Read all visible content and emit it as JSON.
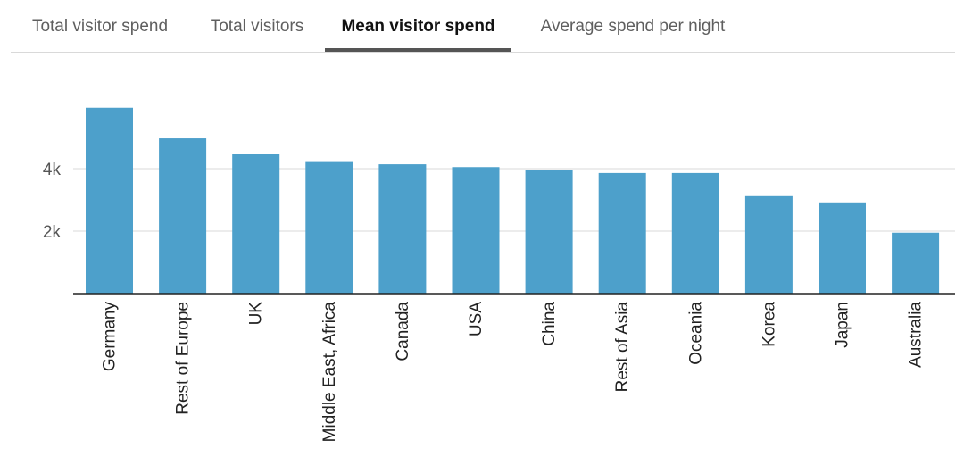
{
  "tabs": [
    {
      "label": "Total visitor spend",
      "active": false
    },
    {
      "label": "Total visitors",
      "active": false
    },
    {
      "label": "Mean visitor spend",
      "active": true
    },
    {
      "label": "Average spend per night",
      "active": false
    }
  ],
  "colors": {
    "bar": "#4da0cb",
    "grid": "#d9d9d9",
    "axis": "#222222",
    "tick_text": "#555555",
    "category_text": "#222222"
  },
  "chart_data": {
    "type": "bar",
    "categories": [
      "Germany",
      "Rest of Europe",
      "UK",
      "Middle East, Africa",
      "Canada",
      "USA",
      "China",
      "Rest of Asia",
      "Oceania",
      "Korea",
      "Japan",
      "Australia"
    ],
    "values": [
      5950,
      4970,
      4480,
      4240,
      4140,
      4050,
      3950,
      3860,
      3860,
      3120,
      2920,
      1950
    ],
    "ylim": [
      0,
      6200
    ],
    "y_ticks": [
      {
        "value": 2000,
        "label": "2k"
      },
      {
        "value": 4000,
        "label": "4k"
      }
    ],
    "grid": true,
    "title": "",
    "xlabel": "",
    "ylabel": ""
  }
}
